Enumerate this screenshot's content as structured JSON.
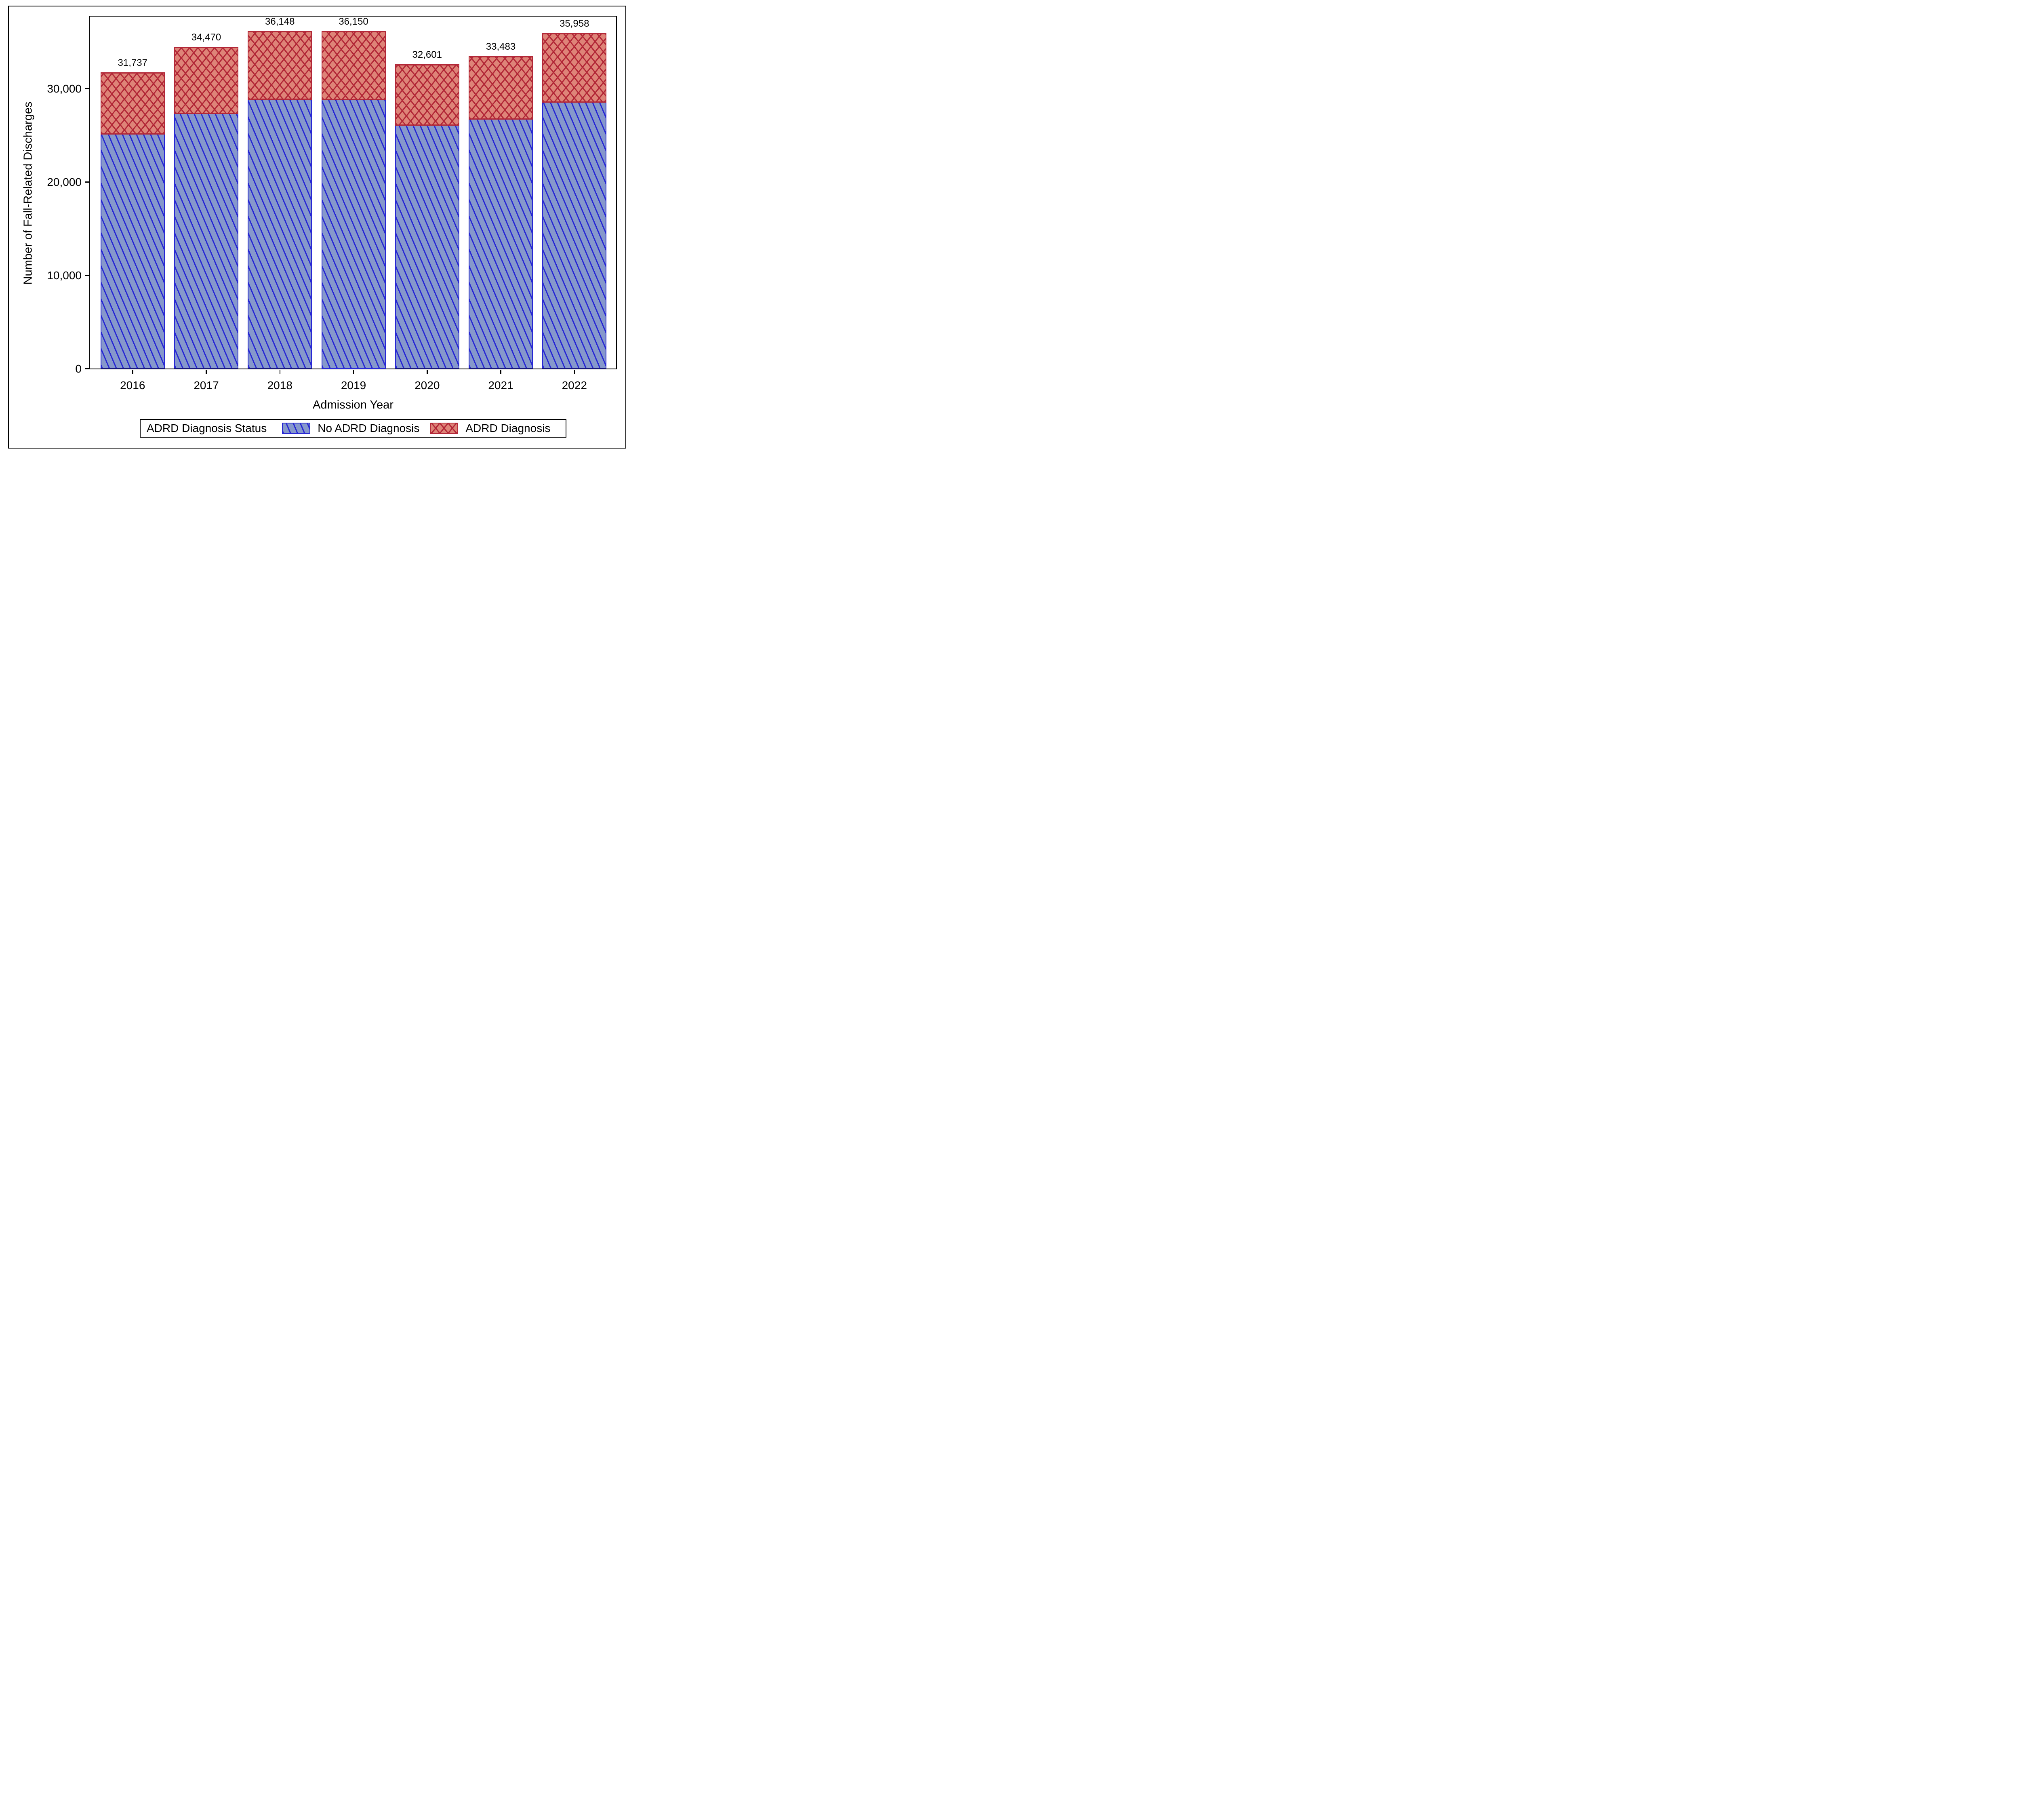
{
  "chart_data": {
    "type": "bar",
    "stacked": true,
    "categories": [
      "2016",
      "2017",
      "2018",
      "2019",
      "2020",
      "2021",
      "2022"
    ],
    "series": [
      {
        "name": "No ADRD Diagnosis",
        "values": [
          25100,
          27300,
          28800,
          28750,
          26050,
          26700,
          28500
        ],
        "note": "segment heights estimated from pixels; segments not individually labeled in figure"
      },
      {
        "name": "ADRD Diagnosis",
        "values": [
          6637,
          7170,
          7348,
          7400,
          6551,
          6783,
          7458
        ],
        "note": "estimated as labeled total minus No-ADRD segment"
      }
    ],
    "totals": [
      31737,
      34470,
      36148,
      36150,
      32601,
      33483,
      35958
    ],
    "total_labels": [
      "31,737",
      "34,470",
      "36,148",
      "36,150",
      "32,601",
      "33,483",
      "35,958"
    ],
    "xlabel": "Admission Year",
    "ylabel": "Number of Fall-Related Discharges",
    "ylim": [
      0,
      37700
    ],
    "y_ticks": [
      0,
      10000,
      20000,
      30000
    ],
    "y_tick_labels": [
      "0",
      "10,000",
      "20,000",
      "30,000"
    ],
    "grid": "off",
    "legend_position": "bottom"
  },
  "legend": {
    "title": "ADRD Diagnosis Status",
    "items": [
      {
        "label": "No ADRD Diagnosis"
      },
      {
        "label": "ADRD Diagnosis"
      }
    ]
  },
  "colors": {
    "no_adrd_fill": "#8698CB",
    "no_adrd_hatch": "#2727D4",
    "adrd_fill": "#DE8478",
    "adrd_hatch": "#B22737",
    "text": "#000000",
    "frame": "#000000",
    "background": "#FFFFFF"
  }
}
